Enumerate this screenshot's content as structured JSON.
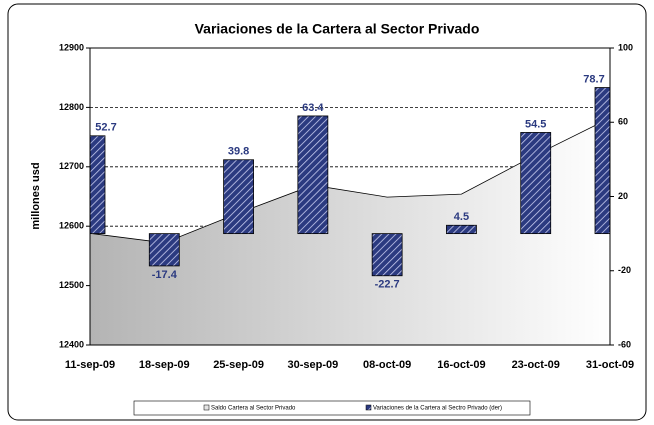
{
  "chart_data": {
    "type": "bar",
    "title": "Variaciones de la Cartera al Sector Privado",
    "y_label": "millones usd",
    "categories": [
      "11-sep-09",
      "18-sep-09",
      "25-sep-09",
      "30-sep-09",
      "08-oct-09",
      "16-oct-09",
      "23-oct-09",
      "31-oct-09"
    ],
    "series": [
      {
        "name": "Saldo Cartera al Sector Privado",
        "type": "area",
        "color": "#a6a6a6",
        "values": [
          12588,
          12572,
          12622,
          12669,
          12649,
          12654,
          12720,
          12782
        ]
      },
      {
        "name": "Variaciones de la Cartera al Sectro Privado (der)",
        "type": "bar",
        "axis": "y2",
        "color": "#2b3a80",
        "values": [
          52.7,
          -17.4,
          39.8,
          63.4,
          -22.7,
          4.5,
          54.5,
          78.7
        ]
      }
    ],
    "ylim": [
      12400,
      12900
    ],
    "yticks": [
      12400,
      12500,
      12600,
      12700,
      12800,
      12900
    ],
    "y2lim": [
      -60,
      100
    ],
    "y2ticks": [
      -60,
      -20,
      20,
      60,
      100
    ],
    "grid": true,
    "legend": "bottom"
  }
}
